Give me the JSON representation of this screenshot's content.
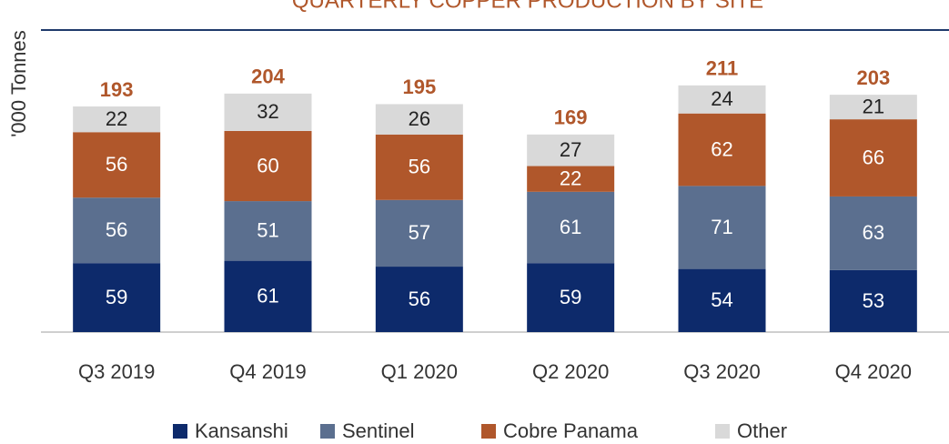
{
  "chart_data": {
    "type": "stacked_bar",
    "title": "QUARTERLY COPPER PRODUCTION BY SITE",
    "y_label": "'000 Tonnes",
    "categories": [
      "Q3 2019",
      "Q4 2019",
      "Q1 2020",
      "Q2 2020",
      "Q3 2020",
      "Q4 2020"
    ],
    "series": [
      {
        "name": "Kansanshi",
        "color": "#0d2a6b",
        "values": [
          59,
          61,
          56,
          59,
          54,
          53
        ]
      },
      {
        "name": "Sentinel",
        "color": "#5b6f8f",
        "values": [
          56,
          51,
          57,
          61,
          71,
          63
        ]
      },
      {
        "name": "Cobre Panama",
        "color": "#b0572b",
        "values": [
          56,
          60,
          56,
          22,
          62,
          66
        ]
      },
      {
        "name": "Other",
        "color": "#d9d9d9",
        "values": [
          22,
          32,
          26,
          27,
          24,
          21
        ]
      }
    ],
    "totals": [
      193,
      204,
      195,
      169,
      211,
      203
    ],
    "ylim": [
      0,
      220
    ],
    "legend": "bottom"
  }
}
